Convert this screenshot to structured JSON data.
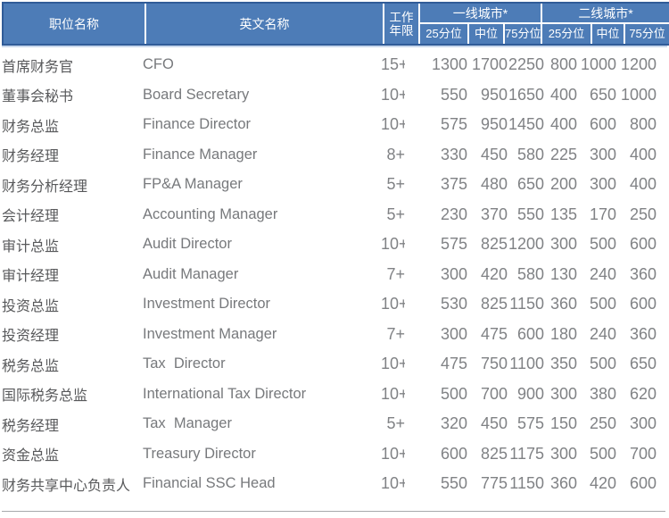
{
  "colors": {
    "header_bg": "#4d7cb7",
    "header_text": "#ffffff",
    "border_dark": "#305c98",
    "divider_white": "#ffffff",
    "underline_light": "#c9d8ec",
    "text_cn": "#58595b",
    "text_en": "#77797c",
    "text_num": "#808285",
    "bottom_rule": "#a7a9ac"
  },
  "table": {
    "header": {
      "col_job_cn": "职位名称",
      "col_job_en": "英文名称",
      "col_exp_line1": "工作",
      "col_exp_line2": "年限",
      "group_tier1": "一线城市*",
      "group_tier2": "二线城市*",
      "sub_labels": [
        "25分位",
        "中位",
        "75分位"
      ]
    },
    "rows": [
      {
        "cn": "首席财务官",
        "en": "CFO",
        "exp": "15+",
        "values": [
          1300,
          1700,
          2250,
          800,
          1000,
          1200
        ]
      },
      {
        "cn": "董事会秘书",
        "en": "Board Secretary",
        "exp": "10+",
        "values": [
          550,
          950,
          1650,
          400,
          650,
          1000
        ]
      },
      {
        "cn": "财务总监",
        "en": "Finance Director",
        "exp": "10+",
        "values": [
          575,
          950,
          1450,
          400,
          600,
          800
        ]
      },
      {
        "cn": "财务经理",
        "en": "Finance Manager",
        "exp": "8+",
        "values": [
          330,
          450,
          580,
          225,
          300,
          400
        ]
      },
      {
        "cn": "财务分析经理",
        "en": "FP&A Manager",
        "exp": "5+",
        "values": [
          375,
          480,
          650,
          200,
          300,
          400
        ]
      },
      {
        "cn": "会计经理",
        "en": "Accounting Manager",
        "exp": "5+",
        "values": [
          230,
          370,
          550,
          135,
          170,
          250
        ]
      },
      {
        "cn": "审计总监",
        "en": "Audit Director",
        "exp": "10+",
        "values": [
          575,
          825,
          1200,
          300,
          500,
          600
        ]
      },
      {
        "cn": "审计经理",
        "en": "Audit Manager",
        "exp": "7+",
        "values": [
          300,
          420,
          580,
          130,
          240,
          360
        ]
      },
      {
        "cn": "投资总监",
        "en": "Investment Director",
        "exp": "10+",
        "values": [
          530,
          825,
          1150,
          360,
          500,
          600
        ]
      },
      {
        "cn": "投资经理",
        "en": "Investment Manager",
        "exp": "7+",
        "values": [
          300,
          475,
          600,
          180,
          240,
          360
        ]
      },
      {
        "cn": "税务总监",
        "en": "Tax  Director",
        "exp": "10+",
        "values": [
          475,
          750,
          1100,
          350,
          500,
          650
        ]
      },
      {
        "cn": "国际税务总监",
        "en": "International Tax Director",
        "exp": "10+",
        "values": [
          500,
          700,
          900,
          300,
          380,
          620
        ]
      },
      {
        "cn": "税务经理",
        "en": "Tax  Manager",
        "exp": "5+",
        "values": [
          320,
          450,
          575,
          150,
          250,
          300
        ]
      },
      {
        "cn": "资金总监",
        "en": "Treasury Director",
        "exp": "10+",
        "values": [
          600,
          825,
          1175,
          300,
          500,
          700
        ]
      },
      {
        "cn": "财务共享中心负责人",
        "en": "Financial SSC Head",
        "exp": "10+",
        "values": [
          550,
          775,
          1150,
          360,
          420,
          600
        ]
      }
    ]
  }
}
